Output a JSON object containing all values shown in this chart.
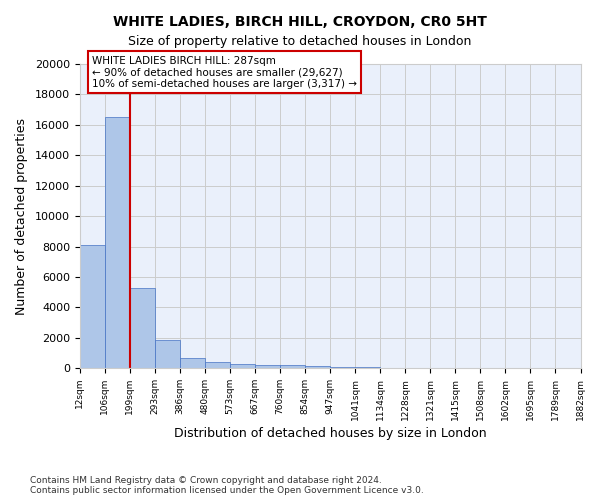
{
  "title": "WHITE LADIES, BIRCH HILL, CROYDON, CR0 5HT",
  "subtitle": "Size of property relative to detached houses in London",
  "xlabel": "Distribution of detached houses by size in London",
  "ylabel": "Number of detached properties",
  "bar_color": "#aec6e8",
  "bar_edge_color": "#4472c4",
  "bar_heights": [
    8100,
    16500,
    5300,
    1850,
    700,
    380,
    280,
    240,
    200,
    130,
    90,
    60,
    40,
    30,
    25,
    20,
    15,
    12,
    10,
    8
  ],
  "bin_labels": [
    "12sqm",
    "106sqm",
    "199sqm",
    "293sqm",
    "386sqm",
    "480sqm",
    "573sqm",
    "667sqm",
    "760sqm",
    "854sqm",
    "947sqm",
    "1041sqm",
    "1134sqm",
    "1228sqm",
    "1321sqm",
    "1415sqm",
    "1508sqm",
    "1602sqm",
    "1695sqm",
    "1789sqm",
    "1882sqm"
  ],
  "ylim": [
    0,
    20000
  ],
  "yticks": [
    0,
    2000,
    4000,
    6000,
    8000,
    10000,
    12000,
    14000,
    16000,
    18000,
    20000
  ],
  "vline_x": 2.0,
  "vline_color": "#cc0000",
  "annotation_text": "WHITE LADIES BIRCH HILL: 287sqm\n← 90% of detached houses are smaller (29,627)\n10% of semi-detached houses are larger (3,317) →",
  "annotation_box_color": "#ffffff",
  "annotation_box_edge_color": "#cc0000",
  "footnote": "Contains HM Land Registry data © Crown copyright and database right 2024.\nContains public sector information licensed under the Open Government Licence v3.0.",
  "background_color": "#ffffff",
  "grid_color": "#cccccc"
}
